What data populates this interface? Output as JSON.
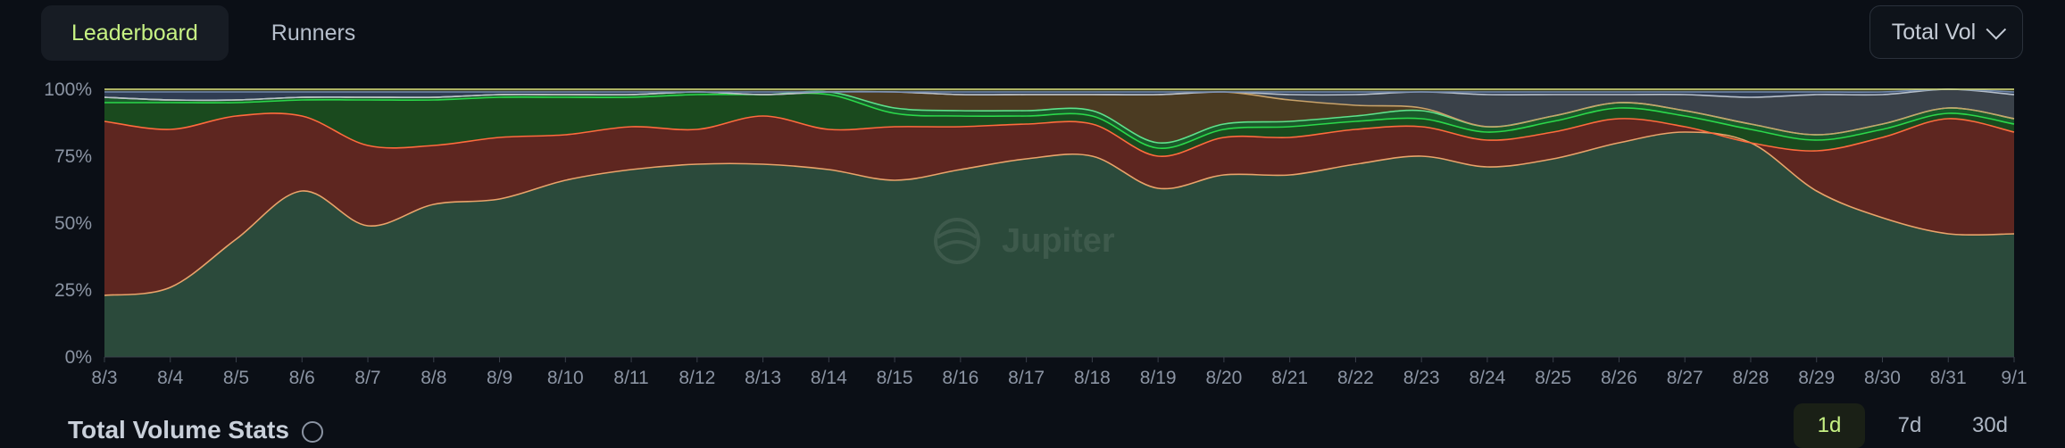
{
  "tabs": [
    {
      "label": "Leaderboard",
      "active": true
    },
    {
      "label": "Runners",
      "active": false
    }
  ],
  "volume_select": {
    "value": "Total Vol"
  },
  "watermark": "Jupiter",
  "stats": {
    "title": "Total Volume Stats"
  },
  "ranges": [
    {
      "label": "1d",
      "active": true
    },
    {
      "label": "7d",
      "active": false
    },
    {
      "label": "30d",
      "active": false
    }
  ],
  "chart_data": {
    "type": "area",
    "stacked": true,
    "normalized": true,
    "x": [
      "8/3",
      "8/4",
      "8/5",
      "8/6",
      "8/7",
      "8/8",
      "8/9",
      "8/10",
      "8/11",
      "8/12",
      "8/13",
      "8/14",
      "8/15",
      "8/16",
      "8/17",
      "8/18",
      "8/19",
      "8/20",
      "8/21",
      "8/22",
      "8/23",
      "8/24",
      "8/25",
      "8/26",
      "8/27",
      "8/28",
      "8/29",
      "8/30",
      "8/31",
      "9/1"
    ],
    "y_ticks": [
      "0%",
      "25%",
      "50%",
      "75%",
      "100%"
    ],
    "ylim": [
      0,
      100
    ],
    "grid": true,
    "series": [
      {
        "color": "#2b4a3b",
        "line": "#e9a36a",
        "values": [
          23,
          26,
          44,
          62,
          49,
          57,
          59,
          66,
          70,
          72,
          72,
          70,
          66,
          70,
          74,
          75,
          63,
          68,
          68,
          72,
          75,
          71,
          74,
          80,
          84,
          80,
          62,
          52,
          46,
          46
        ]
      },
      {
        "color": "#5e2620",
        "line": "#ff6a3d",
        "values": [
          65,
          59,
          46,
          28,
          30,
          22,
          23,
          17,
          16,
          13,
          18,
          15,
          20,
          16,
          13,
          12,
          12,
          14,
          14,
          13,
          11,
          10,
          10,
          9,
          2,
          0,
          15,
          30,
          43,
          38
        ]
      },
      {
        "color": "#1a4a1e",
        "line": "#2bd84a",
        "values": [
          7,
          10,
          5,
          6,
          17,
          17,
          15,
          14,
          11,
          13,
          8,
          13,
          5,
          4,
          3,
          3,
          3,
          3,
          4,
          3,
          3,
          3,
          4,
          4,
          4,
          5,
          4,
          3,
          2,
          3
        ]
      },
      {
        "color": "#1a5a2a",
        "line": "#5de28b",
        "values": [
          2,
          1,
          1,
          1,
          1,
          1,
          1,
          1,
          1,
          1,
          0,
          1,
          2,
          2,
          2,
          2,
          2,
          2,
          2,
          2,
          3,
          2,
          2,
          2,
          2,
          2,
          2,
          2,
          2,
          2
        ]
      },
      {
        "color": "#4b3b22",
        "line": "#c9a36a",
        "values": [
          0,
          0,
          0,
          0,
          0,
          0,
          0,
          0,
          0,
          0,
          0,
          0,
          6,
          6,
          6,
          6,
          18,
          12,
          8,
          4,
          1,
          0,
          0,
          0,
          0,
          0,
          0,
          0,
          0,
          0
        ]
      },
      {
        "color": "#3a4149",
        "line": "#b7c0cb",
        "values": [
          0,
          0,
          0,
          0,
          0,
          0,
          0,
          0,
          0,
          0,
          0,
          0,
          0,
          0,
          0,
          0,
          0,
          0,
          2,
          4,
          6,
          12,
          8,
          3,
          6,
          10,
          15,
          11,
          7,
          9
        ]
      },
      {
        "color": "#2f3c52",
        "line": "#6f86ad",
        "values": [
          2,
          3,
          3,
          2,
          2,
          2,
          1,
          1,
          1,
          0,
          1,
          0,
          0,
          1,
          1,
          1,
          1,
          0,
          1,
          1,
          0,
          1,
          1,
          1,
          1,
          2,
          1,
          1,
          0,
          1
        ]
      },
      {
        "color": "#3b3f2a",
        "line": "#d9e07a",
        "values": [
          1,
          1,
          1,
          1,
          1,
          1,
          1,
          1,
          1,
          1,
          1,
          1,
          1,
          1,
          1,
          1,
          1,
          1,
          1,
          1,
          1,
          1,
          1,
          1,
          1,
          1,
          1,
          1,
          0,
          1
        ]
      }
    ]
  }
}
